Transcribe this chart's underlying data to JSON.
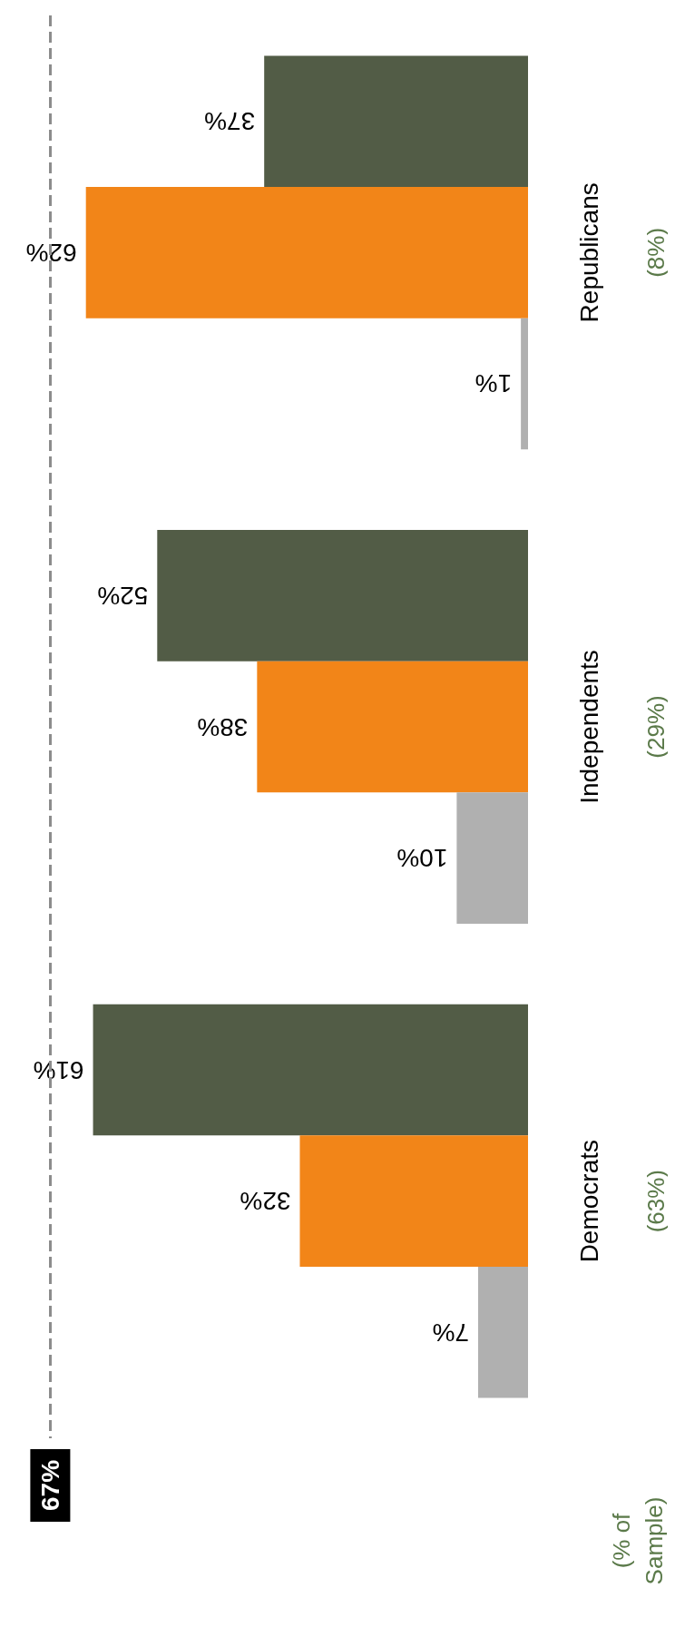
{
  "chart_data": {
    "type": "bar",
    "orientation": "horizontal",
    "categories": [
      "Republicans",
      "Independents",
      "Democrats"
    ],
    "series": [
      {
        "color": "#525c46",
        "values": [
          37,
          52,
          61
        ],
        "value_labels": [
          "37%",
          "52%",
          "61%"
        ]
      },
      {
        "color": "#f28518",
        "values": [
          62,
          38,
          32
        ],
        "value_labels": [
          "62%",
          "38%",
          "32%"
        ]
      },
      {
        "color": "#b0b0b0",
        "values": [
          1,
          10,
          7
        ],
        "value_labels": [
          "1%",
          "10%",
          "7%"
        ]
      }
    ],
    "tick_labels": "y",
    "grid": false,
    "ref_lines": [
      {
        "axis": "x",
        "value": 67,
        "label": "67%",
        "color": "#8c8c8c",
        "line_style": "dashed"
      }
    ],
    "annotations": [
      "(8%)",
      "(29%)",
      "(63%)",
      "(% of Sample)"
    ]
  }
}
